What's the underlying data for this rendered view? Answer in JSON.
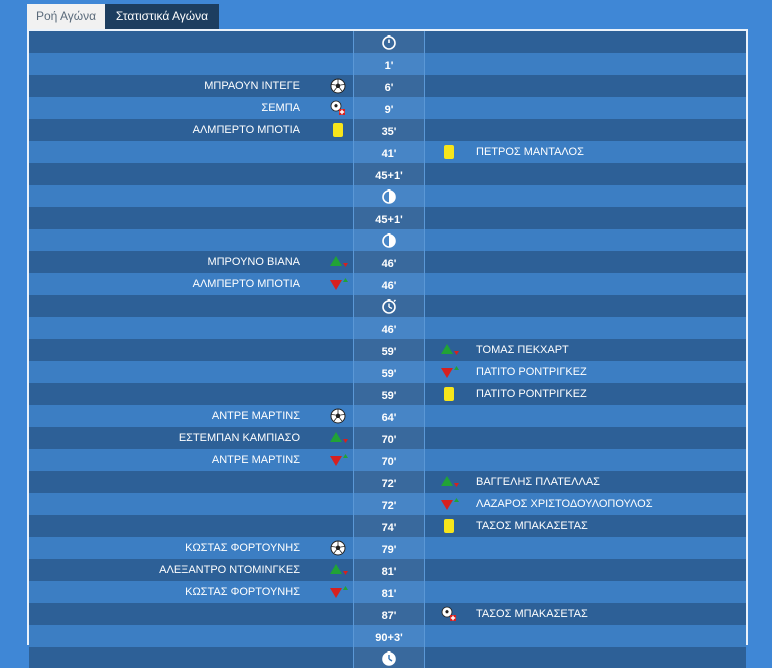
{
  "tabs": [
    {
      "label": "Ροή Αγώνα",
      "active": false
    },
    {
      "label": "Στατιστικά Αγώνα",
      "active": true
    }
  ],
  "colors": {
    "page_bg": "#3f87d6",
    "row_dark": "#2d6097",
    "row_light": "#3c7ec3",
    "tab_active_bg": "#1d3e60",
    "yellow_card": "#f7e51b",
    "sub_in": "#21a336",
    "sub_out": "#d6201f"
  },
  "events": [
    {
      "minute": "",
      "mid_icon": "stopwatch-icon",
      "left": null,
      "right": null
    },
    {
      "minute": "1'",
      "left": null,
      "right": null
    },
    {
      "minute": "6'",
      "left": {
        "name": "ΜΠΡΑΟΥΝ ΙΝΤΕΓΕ",
        "icon": "goal-ball-icon"
      },
      "right": null
    },
    {
      "minute": "9'",
      "left": {
        "name": "ΣΕΜΠΑ",
        "icon": "assist-icon"
      },
      "right": null
    },
    {
      "minute": "35'",
      "left": {
        "name": "ΑΛΜΠΕΡΤΟ ΜΠΟΤΙΑ",
        "icon": "yellow-card-icon"
      },
      "right": null
    },
    {
      "minute": "41'",
      "left": null,
      "right": {
        "name": "ΠΕΤΡΟΣ ΜΑΝΤΑΛΟΣ",
        "icon": "yellow-card-icon"
      }
    },
    {
      "minute": "45+1'",
      "left": null,
      "right": null
    },
    {
      "minute": "",
      "mid_icon": "half-time-icon",
      "left": null,
      "right": null
    },
    {
      "minute": "45+1'",
      "left": null,
      "right": null
    },
    {
      "minute": "",
      "mid_icon": "half-time-icon",
      "left": null,
      "right": null
    },
    {
      "minute": "46'",
      "left": {
        "name": "ΜΠΡΟΥΝΟ ΒΙΑΝΑ",
        "icon": "sub-in-icon"
      },
      "right": null
    },
    {
      "minute": "46'",
      "left": {
        "name": "ΑΛΜΠΕΡΤΟ ΜΠΟΤΙΑ",
        "icon": "sub-out-icon"
      },
      "right": null
    },
    {
      "minute": "",
      "mid_icon": "second-half-icon",
      "left": null,
      "right": null
    },
    {
      "minute": "46'",
      "left": null,
      "right": null
    },
    {
      "minute": "59'",
      "left": null,
      "right": {
        "name": "ΤΟΜΑΣ ΠΕΚΧΑΡΤ",
        "icon": "sub-in-icon"
      }
    },
    {
      "minute": "59'",
      "left": null,
      "right": {
        "name": "ΠΑΤΙΤΟ ΡΟΝΤΡΙΓΚΕΖ",
        "icon": "sub-out-icon"
      }
    },
    {
      "minute": "59'",
      "left": null,
      "right": {
        "name": "ΠΑΤΙΤΟ ΡΟΝΤΡΙΓΚΕΖ",
        "icon": "yellow-card-icon"
      }
    },
    {
      "minute": "64'",
      "left": {
        "name": "ΑΝΤΡΕ ΜΑΡΤΙΝΣ",
        "icon": "goal-ball-icon"
      },
      "right": null
    },
    {
      "minute": "70'",
      "left": {
        "name": "ΕΣΤΕΜΠΑΝ ΚΑΜΠΙΑΣΟ",
        "icon": "sub-in-icon"
      },
      "right": null
    },
    {
      "minute": "70'",
      "left": {
        "name": "ΑΝΤΡΕ ΜΑΡΤΙΝΣ",
        "icon": "sub-out-icon"
      },
      "right": null
    },
    {
      "minute": "72'",
      "left": null,
      "right": {
        "name": "ΒΑΓΓΕΛΗΣ ΠΛΑΤΕΛΛΑΣ",
        "icon": "sub-in-icon"
      }
    },
    {
      "minute": "72'",
      "left": null,
      "right": {
        "name": "ΛΑΖΑΡΟΣ ΧΡΙΣΤΟΔΟΥΛΟΠΟΥΛΟΣ",
        "icon": "sub-out-icon"
      }
    },
    {
      "minute": "74'",
      "left": null,
      "right": {
        "name": "ΤΑΣΟΣ ΜΠΑΚΑΣΕΤΑΣ",
        "icon": "yellow-card-icon"
      }
    },
    {
      "minute": "79'",
      "left": {
        "name": "ΚΩΣΤΑΣ ΦΟΡΤΟΥΝΗΣ",
        "icon": "goal-ball-icon"
      },
      "right": null
    },
    {
      "minute": "81'",
      "left": {
        "name": "ΑΛΕΞΑΝΤΡΟ ΝΤΟΜΙΝΓΚΕΣ",
        "icon": "sub-in-icon"
      },
      "right": null
    },
    {
      "minute": "81'",
      "left": {
        "name": "ΚΩΣΤΑΣ ΦΟΡΤΟΥΝΗΣ",
        "icon": "sub-out-icon"
      },
      "right": null
    },
    {
      "minute": "87'",
      "left": null,
      "right": {
        "name": "ΤΑΣΟΣ ΜΠΑΚΑΣΕΤΑΣ",
        "icon": "assist-icon"
      }
    },
    {
      "minute": "90+3'",
      "left": null,
      "right": null
    },
    {
      "minute": "",
      "mid_icon": "full-time-icon",
      "left": null,
      "right": null
    }
  ]
}
